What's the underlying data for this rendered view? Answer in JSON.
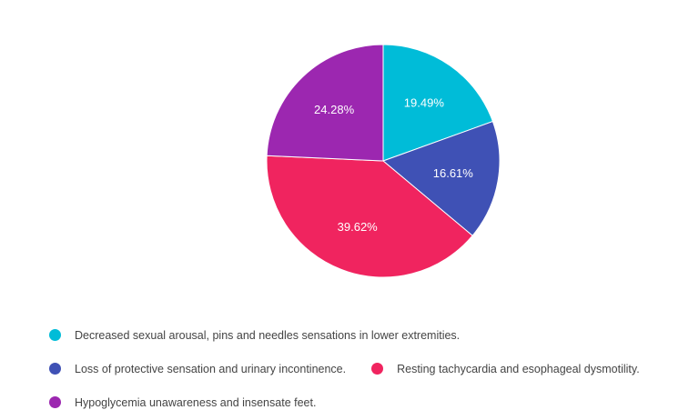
{
  "chart_data": {
    "type": "pie",
    "slices": [
      {
        "label": "Decreased sexual arousal, pins and needles sensations in lower extremities.",
        "value": 19.49,
        "value_label": "19.49%",
        "color": "#00BCD8"
      },
      {
        "label": "Loss of protective sensation and urinary incontinence.",
        "value": 16.61,
        "value_label": "16.61%",
        "color": "#3F51B5"
      },
      {
        "label": "Resting tachycardia and esophageal dysmotility.",
        "value": 39.62,
        "value_label": "39.62%",
        "color": "#F0245F"
      },
      {
        "label": "Hypoglycemia unawareness and insensate feet.",
        "value": 24.28,
        "value_label": "24.28%",
        "color": "#9C27B0"
      }
    ],
    "start_angle_deg": 0,
    "direction": "clockwise",
    "legend_position": "bottom"
  }
}
